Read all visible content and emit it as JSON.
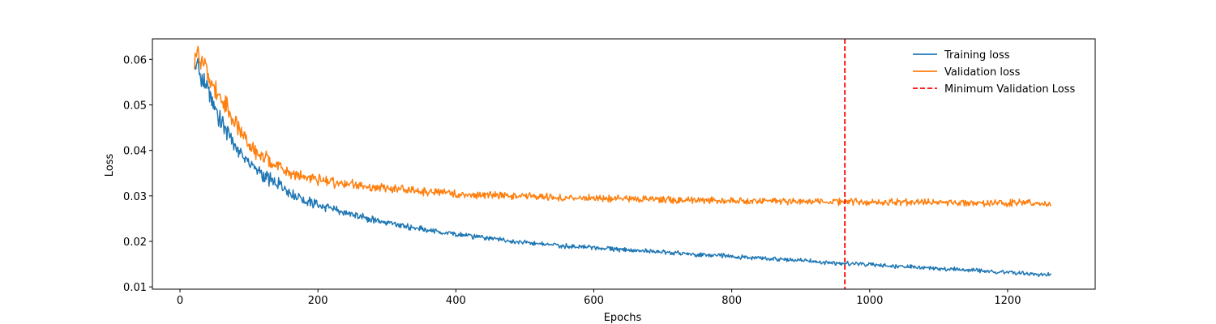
{
  "chart_data": {
    "type": "line",
    "title": "",
    "xlabel": "Epochs",
    "ylabel": "Loss",
    "xlim": [
      -40,
      1327
    ],
    "ylim": [
      0.0095,
      0.0645
    ],
    "xticks": [
      0,
      200,
      400,
      600,
      800,
      1000,
      1200
    ],
    "yticks": [
      0.01,
      0.02,
      0.03,
      0.04,
      0.05,
      0.06
    ],
    "xtick_labels": [
      "0",
      "200",
      "400",
      "600",
      "800",
      "1000",
      "1200"
    ],
    "ytick_labels": [
      "0.01",
      "0.02",
      "0.03",
      "0.04",
      "0.05",
      "0.06"
    ],
    "grid": false,
    "legend_position": "upper right",
    "series": [
      {
        "name": "Training loss",
        "color": "#1f77b4",
        "x": [
          21,
          25,
          30,
          35,
          40,
          45,
          50,
          55,
          60,
          70,
          80,
          90,
          100,
          110,
          120,
          130,
          140,
          150,
          160,
          170,
          180,
          190,
          200,
          210,
          220,
          230,
          240,
          250,
          260,
          270,
          280,
          290,
          300,
          320,
          340,
          360,
          380,
          400,
          420,
          440,
          460,
          480,
          500,
          520,
          540,
          560,
          580,
          600,
          620,
          640,
          660,
          680,
          700,
          720,
          740,
          760,
          780,
          800,
          820,
          840,
          860,
          880,
          900,
          920,
          940,
          960,
          980,
          1000,
          1020,
          1040,
          1060,
          1080,
          1100,
          1120,
          1140,
          1160,
          1180,
          1200,
          1220,
          1240,
          1263
        ],
        "values": [
          0.0585,
          0.0595,
          0.056,
          0.055,
          0.0535,
          0.052,
          0.05,
          0.048,
          0.0465,
          0.044,
          0.041,
          0.039,
          0.0375,
          0.036,
          0.0345,
          0.0335,
          0.0325,
          0.032,
          0.0305,
          0.03,
          0.029,
          0.0285,
          0.028,
          0.0275,
          0.027,
          0.0268,
          0.0262,
          0.026,
          0.0255,
          0.0252,
          0.0248,
          0.0245,
          0.0242,
          0.0235,
          0.023,
          0.0225,
          0.022,
          0.0216,
          0.0212,
          0.0208,
          0.0204,
          0.02,
          0.0198,
          0.0195,
          0.0192,
          0.019,
          0.0188,
          0.0186,
          0.0184,
          0.0182,
          0.018,
          0.0178,
          0.0176,
          0.0174,
          0.0172,
          0.017,
          0.0169,
          0.0167,
          0.0165,
          0.0163,
          0.0161,
          0.016,
          0.0158,
          0.0156,
          0.0154,
          0.0152,
          0.015,
          0.0149,
          0.0147,
          0.0146,
          0.0144,
          0.0142,
          0.0141,
          0.0139,
          0.0138,
          0.0136,
          0.0134,
          0.0132,
          0.013,
          0.0128,
          0.0126
        ]
      },
      {
        "name": "Validation loss",
        "color": "#ff7f0e",
        "x": [
          21,
          25,
          30,
          35,
          40,
          45,
          50,
          55,
          60,
          70,
          80,
          90,
          100,
          110,
          120,
          130,
          140,
          150,
          160,
          170,
          180,
          190,
          200,
          210,
          220,
          230,
          240,
          250,
          260,
          270,
          280,
          290,
          300,
          320,
          340,
          360,
          380,
          400,
          420,
          440,
          460,
          480,
          500,
          520,
          540,
          560,
          580,
          600,
          620,
          640,
          660,
          680,
          700,
          720,
          740,
          760,
          780,
          800,
          820,
          840,
          860,
          880,
          900,
          920,
          940,
          960,
          980,
          1000,
          1020,
          1040,
          1060,
          1080,
          1100,
          1120,
          1140,
          1160,
          1180,
          1200,
          1220,
          1240,
          1263
        ],
        "values": [
          0.061,
          0.0615,
          0.059,
          0.0585,
          0.057,
          0.0555,
          0.054,
          0.0525,
          0.051,
          0.0485,
          0.046,
          0.0435,
          0.0415,
          0.0395,
          0.0385,
          0.0375,
          0.0365,
          0.036,
          0.035,
          0.0345,
          0.034,
          0.0338,
          0.0335,
          0.0332,
          0.033,
          0.0328,
          0.0326,
          0.0324,
          0.0322,
          0.032,
          0.0319,
          0.0318,
          0.0316,
          0.0313,
          0.0311,
          0.0309,
          0.0307,
          0.0305,
          0.0303,
          0.0302,
          0.0301,
          0.03,
          0.0299,
          0.0298,
          0.0297,
          0.0296,
          0.0295,
          0.0295,
          0.0294,
          0.0293,
          0.0293,
          0.0292,
          0.0292,
          0.0291,
          0.0291,
          0.029,
          0.029,
          0.0289,
          0.0289,
          0.0289,
          0.0288,
          0.0288,
          0.0288,
          0.0287,
          0.0287,
          0.0287,
          0.0287,
          0.0286,
          0.0286,
          0.0286,
          0.0286,
          0.0286,
          0.0285,
          0.0285,
          0.0285,
          0.0285,
          0.0285,
          0.0284,
          0.0284,
          0.0284,
          0.0283
        ]
      }
    ],
    "vline": {
      "name": "Minimum Validation Loss",
      "x": 964,
      "color": "#ff0000",
      "style": "dashed"
    }
  }
}
